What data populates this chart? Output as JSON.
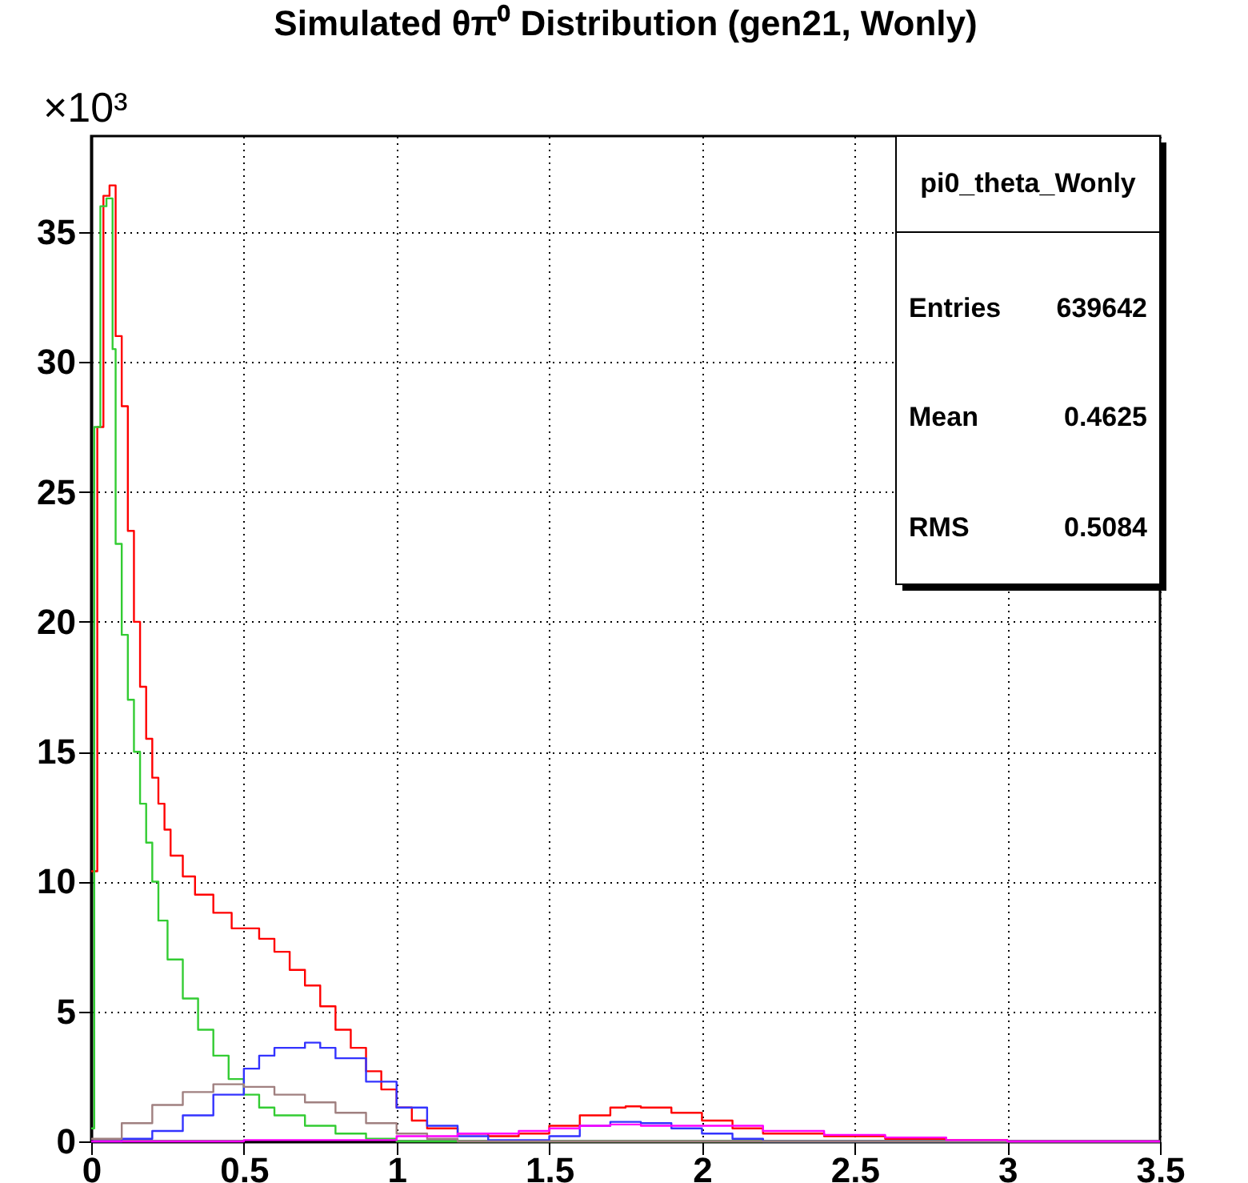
{
  "chart_data": {
    "type": "step",
    "title": "Simulated θπ⁰ Distribution (gen21, Wonly)",
    "annotations": [
      "×10³",
      "pi0_theta_Wonly",
      "Entries",
      "639642",
      "Mean",
      "0.4625",
      "RMS",
      "0.5084"
    ],
    "xlim": [
      0,
      3.5
    ],
    "xticks": [
      0,
      0.5,
      1,
      1.5,
      2,
      2.5,
      3,
      3.5
    ],
    "ylim": [
      0,
      38.7
    ],
    "yticks": [
      0,
      5,
      10,
      15,
      20,
      25,
      30,
      35
    ],
    "grid": true,
    "line_style": "solid",
    "series": [
      {
        "color": "#ff0000",
        "x": [
          0,
          0.02,
          0.04,
          0.06,
          0.08,
          0.1,
          0.12,
          0.14,
          0.16,
          0.18,
          0.2,
          0.22,
          0.24,
          0.26,
          0.3,
          0.34,
          0.4,
          0.46,
          0.55,
          0.6,
          0.65,
          0.7,
          0.75,
          0.8,
          0.85,
          0.9,
          0.95,
          1.0,
          1.05,
          1.1,
          1.2,
          1.3,
          1.4,
          1.5,
          1.6,
          1.7,
          1.75,
          1.8,
          1.9,
          2.0,
          2.1,
          2.2,
          2.4,
          2.6,
          2.8,
          3.0,
          3.5
        ],
        "values": [
          10.4,
          27.5,
          36.4,
          36.8,
          31,
          28.3,
          23.5,
          20,
          17.5,
          15.5,
          14,
          13,
          12,
          11,
          10.2,
          9.5,
          8.8,
          8.2,
          7.8,
          7.3,
          6.6,
          6,
          5.2,
          4.3,
          3.6,
          2.7,
          2,
          1.3,
          0.8,
          0.5,
          0.3,
          0.2,
          0.3,
          0.6,
          1.0,
          1.3,
          1.35,
          1.3,
          1.1,
          0.8,
          0.5,
          0.3,
          0.2,
          0.1,
          0.05,
          0,
          0
        ]
      },
      {
        "color": "#33cc33",
        "x": [
          0,
          0.01,
          0.03,
          0.05,
          0.07,
          0.08,
          0.1,
          0.12,
          0.14,
          0.16,
          0.18,
          0.2,
          0.22,
          0.25,
          0.3,
          0.35,
          0.4,
          0.45,
          0.5,
          0.55,
          0.6,
          0.7,
          0.8,
          0.9,
          1.0,
          3.5
        ],
        "values": [
          0.5,
          27.5,
          36,
          36.3,
          30.5,
          23,
          19.5,
          17,
          15,
          13,
          11.5,
          10,
          8.5,
          7,
          5.5,
          4.3,
          3.3,
          2.4,
          1.8,
          1.3,
          1.0,
          0.6,
          0.3,
          0.1,
          0,
          0
        ]
      },
      {
        "color": "#3333ff",
        "x": [
          0,
          0.1,
          0.2,
          0.3,
          0.4,
          0.5,
          0.55,
          0.6,
          0.7,
          0.75,
          0.8,
          0.9,
          1.0,
          1.1,
          1.2,
          1.3,
          1.4,
          1.5,
          1.6,
          1.7,
          1.8,
          1.9,
          2.0,
          2.1,
          2.2,
          3.5
        ],
        "values": [
          0,
          0.1,
          0.4,
          1.0,
          1.8,
          2.8,
          3.3,
          3.6,
          3.8,
          3.6,
          3.2,
          2.3,
          1.3,
          0.6,
          0.2,
          0.05,
          0.05,
          0.2,
          0.6,
          0.75,
          0.7,
          0.5,
          0.3,
          0.1,
          0,
          0
        ]
      },
      {
        "color": "#a08080",
        "x": [
          0,
          0.1,
          0.2,
          0.3,
          0.4,
          0.5,
          0.6,
          0.7,
          0.8,
          0.9,
          1.0,
          1.1,
          1.2,
          3.5
        ],
        "values": [
          0.1,
          0.7,
          1.4,
          1.9,
          2.2,
          2.1,
          1.8,
          1.5,
          1.1,
          0.7,
          0.3,
          0.1,
          0,
          0
        ]
      },
      {
        "color": "#ff00ff",
        "x": [
          0,
          0.5,
          1.0,
          1.2,
          1.4,
          1.5,
          1.6,
          1.7,
          1.8,
          2.0,
          2.2,
          2.4,
          2.6,
          2.8,
          3.0,
          3.5
        ],
        "values": [
          0,
          0.05,
          0.2,
          0.3,
          0.4,
          0.5,
          0.6,
          0.65,
          0.6,
          0.6,
          0.4,
          0.25,
          0.15,
          0.05,
          0,
          0
        ]
      }
    ]
  }
}
